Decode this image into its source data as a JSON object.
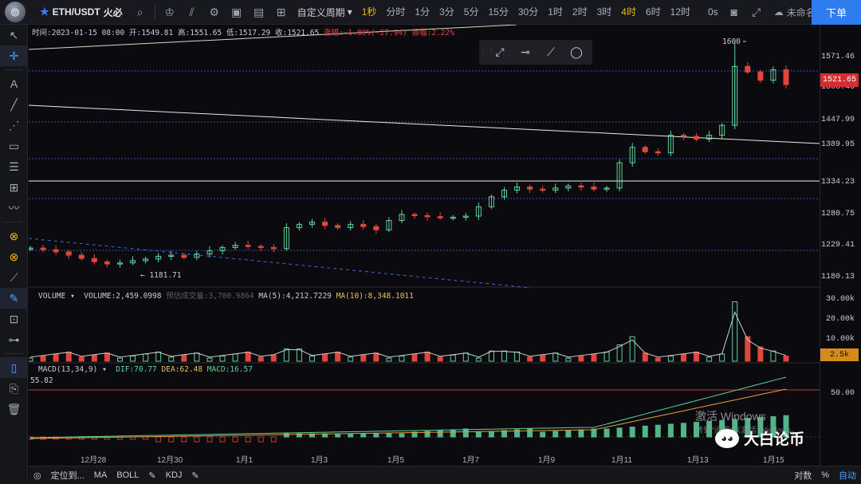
{
  "topbar": {
    "symbol": "ETH/USDT",
    "exchange": "火必",
    "custom_period": "自定义周期",
    "intervals": [
      "1秒",
      "分时",
      "1分",
      "3分",
      "5分",
      "15分",
      "30分",
      "1时",
      "2时",
      "3时",
      "4时",
      "6时",
      "12时"
    ],
    "active_interval": "4时",
    "highlight_interval": "1秒",
    "zero_s": "0s",
    "unnamed": "未命名",
    "order_label": "下单"
  },
  "info": {
    "time_label": "时间:2023-01-15 08:00",
    "open": "开:1549.81",
    "high": "高:1551.65",
    "low": "低:1517.29",
    "close": "收:1521.65",
    "change": "涨幅:-1.80%(-27.94)",
    "amplitude": "振幅:2.22%"
  },
  "volume_info": {
    "label": "VOLUME",
    "value": "VOLUME:2,459.0998",
    "forecast": "预估成交量:3,700.9864",
    "ma5": "MA(5):4,212.7229",
    "ma10": "MA(10):8,348.1011"
  },
  "macd_info": {
    "label": "MACD(13,34,9)",
    "dif": "DIF:70.77",
    "dea": "DEA:62.48",
    "macd": "MACD:16.57",
    "level": "55.82"
  },
  "price_axis": [
    "1571.46",
    "1508.46",
    "1447.99",
    "1389.95",
    "1334.23",
    "1280.75",
    "1229.41",
    "1180.13"
  ],
  "current_price": "1521.65",
  "volume_axis": [
    "30.00k",
    "20.00k",
    "10.00k"
  ],
  "current_volume": "2.5k",
  "macd_axis": "50.00",
  "annotations": {
    "high": "1600",
    "low": "← 1181.71"
  },
  "x_axis": [
    "12月28",
    "12月30",
    "1月1",
    "1月3",
    "1月5",
    "1月7",
    "1月9",
    "1月11",
    "1月13",
    "1月15"
  ],
  "bottombar": {
    "locate": "定位到...",
    "ma": "MA",
    "boll": "BOLL",
    "kdj": "KDJ",
    "log": "对数",
    "pct": "%",
    "auto": "自动"
  },
  "watermark": {
    "line1": "激活 Windows",
    "line2": "转到\"设置\"以激活 Windows。"
  },
  "brand": {
    "text": "大白论币"
  },
  "colors": {
    "up": "#5fd39b",
    "down": "#e0463c",
    "accent": "#2f7bf0",
    "active": "#f0b90b"
  },
  "chart_data": {
    "type": "candlestick",
    "note_levels": [
      1600,
      1181.71
    ],
    "approx_closes": [
      1225,
      1222,
      1218,
      1212,
      1206,
      1200,
      1196,
      1198,
      1202,
      1205,
      1210,
      1212,
      1208,
      1214,
      1220,
      1226,
      1230,
      1228,
      1226,
      1224,
      1262,
      1268,
      1272,
      1266,
      1262,
      1268,
      1264,
      1258,
      1275,
      1286,
      1284,
      1282,
      1280,
      1281,
      1283,
      1300,
      1318,
      1330,
      1336,
      1332,
      1330,
      1334,
      1338,
      1336,
      1332,
      1334,
      1380,
      1408,
      1400,
      1398,
      1430,
      1428,
      1423,
      1430,
      1448,
      1555,
      1545,
      1530,
      1549,
      1522
    ]
  }
}
